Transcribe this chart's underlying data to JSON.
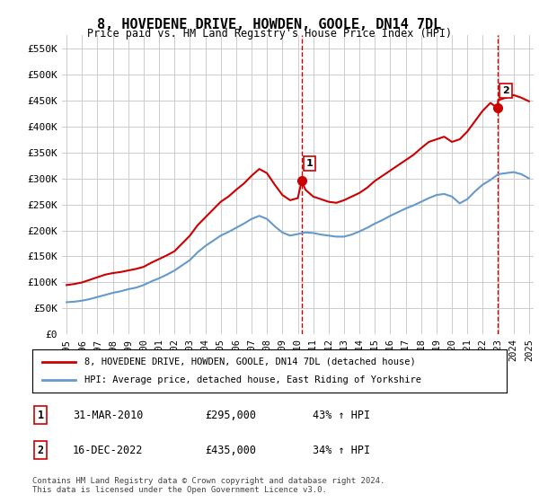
{
  "title": "8, HOVEDENE DRIVE, HOWDEN, GOOLE, DN14 7DL",
  "subtitle": "Price paid vs. HM Land Registry's House Price Index (HPI)",
  "legend_line1": "8, HOVEDENE DRIVE, HOWDEN, GOOLE, DN14 7DL (detached house)",
  "legend_line2": "HPI: Average price, detached house, East Riding of Yorkshire",
  "footnote": "Contains HM Land Registry data © Crown copyright and database right 2024.\nThis data is licensed under the Open Government Licence v3.0.",
  "sale1_label": "1",
  "sale1_date": "31-MAR-2010",
  "sale1_price": "£295,000",
  "sale1_hpi": "43% ↑ HPI",
  "sale2_label": "2",
  "sale2_date": "16-DEC-2022",
  "sale2_price": "£435,000",
  "sale2_hpi": "34% ↑ HPI",
  "red_color": "#cc0000",
  "blue_color": "#6699cc",
  "dashed_color": "#cc0000",
  "background_color": "#ffffff",
  "grid_color": "#cccccc",
  "ylim_min": 0,
  "ylim_max": 575000,
  "yticks": [
    0,
    50000,
    100000,
    150000,
    200000,
    250000,
    300000,
    350000,
    400000,
    450000,
    500000,
    550000
  ],
  "ytick_labels": [
    "£0",
    "£50K",
    "£100K",
    "£150K",
    "£200K",
    "£250K",
    "£300K",
    "£350K",
    "£400K",
    "£450K",
    "£500K",
    "£550K"
  ],
  "x_start_year": 1995,
  "x_end_year": 2025,
  "xtick_years": [
    1995,
    1996,
    1997,
    1998,
    1999,
    2000,
    2001,
    2002,
    2003,
    2004,
    2005,
    2006,
    2007,
    2008,
    2009,
    2010,
    2011,
    2012,
    2013,
    2014,
    2015,
    2016,
    2017,
    2018,
    2019,
    2020,
    2021,
    2022,
    2023,
    2024,
    2025
  ],
  "sale1_x": 2010.25,
  "sale1_y": 295000,
  "sale2_x": 2022.96,
  "sale2_y": 435000,
  "vline1_x": 2010.25,
  "vline2_x": 2022.96,
  "red_line_x": [
    1995.0,
    1995.5,
    1996.0,
    1996.5,
    1997.0,
    1997.5,
    1998.0,
    1998.5,
    1999.0,
    1999.5,
    2000.0,
    2000.5,
    2001.0,
    2001.5,
    2002.0,
    2002.5,
    2003.0,
    2003.5,
    2004.0,
    2004.5,
    2005.0,
    2005.5,
    2006.0,
    2006.5,
    2007.0,
    2007.5,
    2008.0,
    2008.5,
    2009.0,
    2009.5,
    2010.0,
    2010.25,
    2010.5,
    2011.0,
    2011.5,
    2012.0,
    2012.5,
    2013.0,
    2013.5,
    2014.0,
    2014.5,
    2015.0,
    2015.5,
    2016.0,
    2016.5,
    2017.0,
    2017.5,
    2018.0,
    2018.5,
    2019.0,
    2019.5,
    2020.0,
    2020.5,
    2021.0,
    2021.5,
    2022.0,
    2022.5,
    2022.96,
    2023.0,
    2023.5,
    2024.0,
    2024.5,
    2025.0
  ],
  "red_line_y": [
    95000,
    97000,
    100000,
    105000,
    110000,
    115000,
    118000,
    120000,
    123000,
    126000,
    130000,
    138000,
    145000,
    152000,
    160000,
    175000,
    190000,
    210000,
    225000,
    240000,
    255000,
    265000,
    278000,
    290000,
    305000,
    318000,
    310000,
    288000,
    268000,
    258000,
    262000,
    295000,
    278000,
    265000,
    260000,
    255000,
    253000,
    258000,
    265000,
    272000,
    282000,
    295000,
    305000,
    315000,
    325000,
    335000,
    345000,
    358000,
    370000,
    375000,
    380000,
    370000,
    375000,
    390000,
    410000,
    430000,
    445000,
    435000,
    450000,
    455000,
    460000,
    455000,
    448000
  ],
  "blue_line_x": [
    1995.0,
    1995.5,
    1996.0,
    1996.5,
    1997.0,
    1997.5,
    1998.0,
    1998.5,
    1999.0,
    1999.5,
    2000.0,
    2000.5,
    2001.0,
    2001.5,
    2002.0,
    2002.5,
    2003.0,
    2003.5,
    2004.0,
    2004.5,
    2005.0,
    2005.5,
    2006.0,
    2006.5,
    2007.0,
    2007.5,
    2008.0,
    2008.5,
    2009.0,
    2009.5,
    2010.0,
    2010.5,
    2011.0,
    2011.5,
    2012.0,
    2012.5,
    2013.0,
    2013.5,
    2014.0,
    2014.5,
    2015.0,
    2015.5,
    2016.0,
    2016.5,
    2017.0,
    2017.5,
    2018.0,
    2018.5,
    2019.0,
    2019.5,
    2020.0,
    2020.5,
    2021.0,
    2021.5,
    2022.0,
    2022.5,
    2023.0,
    2023.5,
    2024.0,
    2024.5,
    2025.0
  ],
  "blue_line_y": [
    62000,
    63000,
    65000,
    68000,
    72000,
    76000,
    80000,
    83000,
    87000,
    90000,
    95000,
    102000,
    108000,
    115000,
    123000,
    133000,
    143000,
    158000,
    170000,
    180000,
    190000,
    197000,
    205000,
    213000,
    222000,
    228000,
    222000,
    208000,
    196000,
    190000,
    193000,
    196000,
    195000,
    192000,
    190000,
    188000,
    188000,
    192000,
    198000,
    205000,
    213000,
    220000,
    228000,
    235000,
    242000,
    248000,
    255000,
    262000,
    268000,
    270000,
    265000,
    252000,
    260000,
    275000,
    288000,
    297000,
    308000,
    310000,
    312000,
    308000,
    300000
  ]
}
